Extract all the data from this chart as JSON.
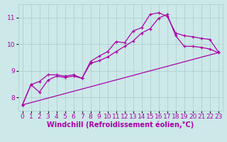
{
  "background_color": "#cce8e8",
  "grid_color": "#aacccc",
  "line_color": "#aa00aa",
  "marker_color": "#aa00aa",
  "xlabel": "Windchill (Refroidissement éolien,°C)",
  "ylim": [
    7.5,
    11.5
  ],
  "xlim": [
    -0.5,
    23.5
  ],
  "yticks": [
    8,
    9,
    10,
    11
  ],
  "xticks": [
    0,
    1,
    2,
    3,
    4,
    5,
    6,
    7,
    8,
    9,
    10,
    11,
    12,
    13,
    14,
    15,
    16,
    17,
    18,
    19,
    20,
    21,
    22,
    23
  ],
  "series1_x": [
    0,
    1,
    2,
    3,
    4,
    5,
    6,
    7,
    8,
    9,
    10,
    11,
    12,
    13,
    14,
    15,
    16,
    17,
    18,
    19,
    20,
    21,
    22,
    23
  ],
  "series1_y": [
    7.72,
    8.48,
    8.6,
    8.85,
    8.85,
    8.8,
    8.85,
    8.72,
    9.35,
    9.55,
    9.72,
    10.1,
    10.05,
    10.5,
    10.62,
    11.12,
    11.18,
    11.05,
    10.42,
    10.32,
    10.28,
    10.22,
    10.18,
    9.72
  ],
  "series2_x": [
    0,
    1,
    2,
    3,
    4,
    5,
    6,
    7,
    8,
    9,
    10,
    11,
    12,
    13,
    14,
    15,
    16,
    17,
    18,
    19,
    20,
    21,
    22,
    23
  ],
  "series2_y": [
    7.72,
    8.48,
    8.2,
    8.65,
    8.8,
    8.75,
    8.8,
    8.72,
    9.28,
    9.38,
    9.52,
    9.72,
    9.92,
    10.12,
    10.42,
    10.58,
    10.98,
    11.12,
    10.32,
    9.92,
    9.92,
    9.88,
    9.82,
    9.68
  ],
  "series3_x": [
    0,
    23
  ],
  "series3_y": [
    7.72,
    9.68
  ],
  "xlabel_fontsize": 7,
  "tick_fontsize": 6.5,
  "linewidth": 0.9,
  "markersize": 3.5
}
